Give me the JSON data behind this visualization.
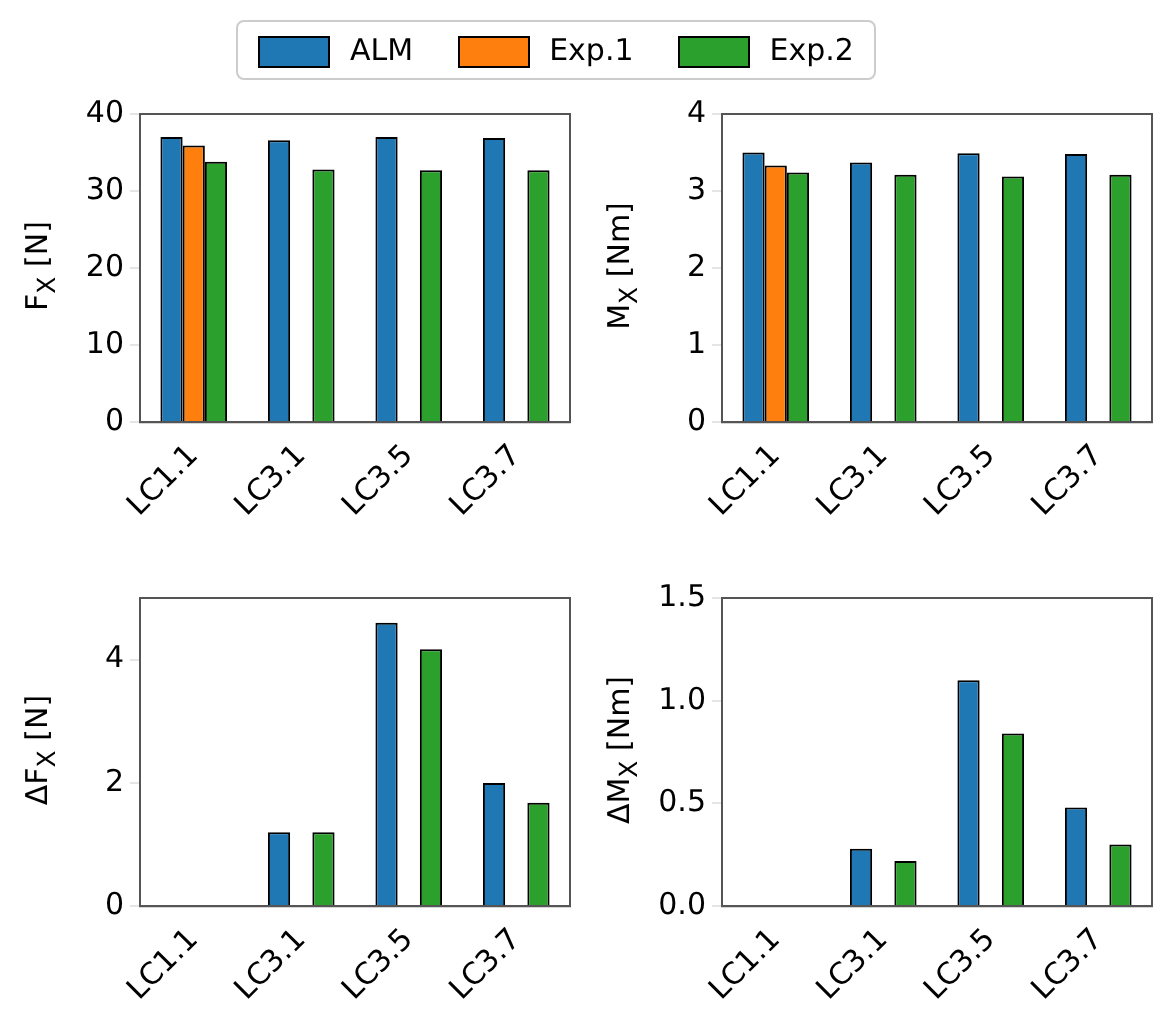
{
  "chart_data": [
    {
      "type": "bar",
      "ylabel": "F$_{X}$ [N]",
      "categories": [
        "LC1.1",
        "LC3.1",
        "LC3.5",
        "LC3.7"
      ],
      "ylim": [
        0,
        40
      ],
      "yticks": [
        0,
        10,
        20,
        30,
        40
      ],
      "grid": false,
      "legend": "top",
      "series": [
        {
          "name": "ALM",
          "color": "#1f77b4",
          "values": [
            37,
            36.6,
            37,
            36.9
          ]
        },
        {
          "name": "Exp.1",
          "color": "#ff7f0e",
          "values": [
            35.9,
            0,
            0,
            0
          ]
        },
        {
          "name": "Exp.2",
          "color": "#2ca02c",
          "values": [
            33.8,
            32.8,
            32.7,
            32.7
          ]
        }
      ]
    },
    {
      "type": "bar",
      "ylabel": "M$_{X}$ [Nm]",
      "categories": [
        "LC1.1",
        "LC3.1",
        "LC3.5",
        "LC3.7"
      ],
      "ylim": [
        0,
        4
      ],
      "yticks": [
        0,
        1,
        2,
        3,
        4
      ],
      "grid": false,
      "legend": false,
      "series": [
        {
          "color": "#1f77b4",
          "values": [
            3.5,
            3.37,
            3.49,
            3.48
          ]
        },
        {
          "color": "#ff7f0e",
          "values": [
            3.33,
            0,
            0,
            0
          ]
        },
        {
          "color": "#2ca02c",
          "values": [
            3.24,
            3.21,
            3.19,
            3.21
          ]
        }
      ]
    },
    {
      "type": "bar",
      "ylabel": "ΔF$_{X}$ [N]",
      "categories": [
        "LC1.1",
        "LC3.1",
        "LC3.5",
        "LC3.7"
      ],
      "ylim": [
        0,
        5
      ],
      "yticks": [
        0,
        2,
        4
      ],
      "grid": false,
      "legend": false,
      "series": [
        {
          "color": "#1f77b4",
          "values": [
            0,
            1.2,
            4.6,
            2.0
          ]
        },
        {
          "color": "#ff7f0e",
          "values": [
            0,
            0,
            0,
            0
          ]
        },
        {
          "color": "#2ca02c",
          "values": [
            0,
            1.2,
            4.17,
            1.68
          ]
        }
      ]
    },
    {
      "type": "bar",
      "ylabel": "ΔM$_{X}$ [Nm]",
      "categories": [
        "LC1.1",
        "LC3.1",
        "LC3.5",
        "LC3.7"
      ],
      "ylim": [
        0,
        1.5
      ],
      "yticks": [
        {
          "value": 0,
          "label": "0.0"
        },
        {
          "value": 0.5,
          "label": "0.5"
        },
        {
          "value": 1,
          "label": "1.0"
        },
        {
          "value": 1.5,
          "label": "1.5"
        }
      ],
      "grid": false,
      "legend": false,
      "series": [
        {
          "color": "#1f77b4",
          "values": [
            0,
            0.28,
            1.1,
            0.48
          ]
        },
        {
          "color": "#ff7f0e",
          "values": [
            0,
            0,
            0,
            0
          ]
        },
        {
          "color": "#2ca02c",
          "values": [
            0,
            0.22,
            0.84,
            0.3
          ]
        }
      ]
    }
  ]
}
